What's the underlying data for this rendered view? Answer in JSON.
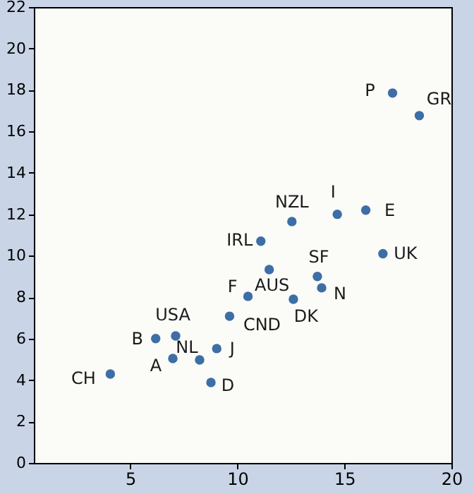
{
  "chart_data": {
    "type": "scatter",
    "marker": "circle",
    "grid": false,
    "x": [
      17.25,
      18.5,
      12.55,
      14.67,
      16.0,
      11.1,
      16.8,
      11.49,
      10.5,
      12.62,
      13.74,
      13.94,
      9.64,
      7.12,
      6.19,
      8.24,
      6.99,
      9.04,
      8.77,
      4.07
    ],
    "series": [
      {
        "color": "#3d6ea6",
        "values": [
          17.85,
          16.76,
          11.65,
          12.0,
          12.2,
          10.7,
          10.1,
          9.33,
          8.04,
          7.9,
          9.0,
          8.45,
          7.08,
          6.13,
          6.0,
          4.97,
          5.04,
          5.52,
          3.88,
          4.29
        ]
      }
    ],
    "annotations": [
      {
        "text": "P",
        "x": 17.25,
        "y": 17.85
      },
      {
        "text": "GR",
        "x": 18.5,
        "y": 16.76
      },
      {
        "text": "NZL",
        "x": 12.55,
        "y": 11.65
      },
      {
        "text": "I",
        "x": 14.67,
        "y": 12.0
      },
      {
        "text": "E",
        "x": 16.0,
        "y": 12.2
      },
      {
        "text": "IRL",
        "x": 11.1,
        "y": 10.7
      },
      {
        "text": "UK",
        "x": 16.8,
        "y": 10.1
      },
      {
        "text": "AUS",
        "x": 11.49,
        "y": 9.33
      },
      {
        "text": "F",
        "x": 10.5,
        "y": 8.04
      },
      {
        "text": "DK",
        "x": 12.62,
        "y": 7.9
      },
      {
        "text": "SF",
        "x": 13.74,
        "y": 9.0
      },
      {
        "text": "N",
        "x": 13.94,
        "y": 8.45
      },
      {
        "text": "CND",
        "x": 9.64,
        "y": 7.08
      },
      {
        "text": "USA",
        "x": 7.12,
        "y": 6.13
      },
      {
        "text": "B",
        "x": 6.19,
        "y": 6.0
      },
      {
        "text": "NL",
        "x": 8.24,
        "y": 4.97
      },
      {
        "text": "A",
        "x": 6.99,
        "y": 5.04
      },
      {
        "text": "J",
        "x": 9.04,
        "y": 5.52
      },
      {
        "text": "D",
        "x": 8.77,
        "y": 3.88
      },
      {
        "text": "CH",
        "x": 4.07,
        "y": 4.29
      }
    ],
    "xlim": [
      0.5,
      20
    ],
    "xticks": [
      5,
      10,
      15,
      20
    ],
    "ylim": [
      0,
      22
    ],
    "yticks": [
      0,
      2,
      4,
      6,
      8,
      10,
      12,
      14,
      16,
      18,
      20,
      22
    ]
  }
}
